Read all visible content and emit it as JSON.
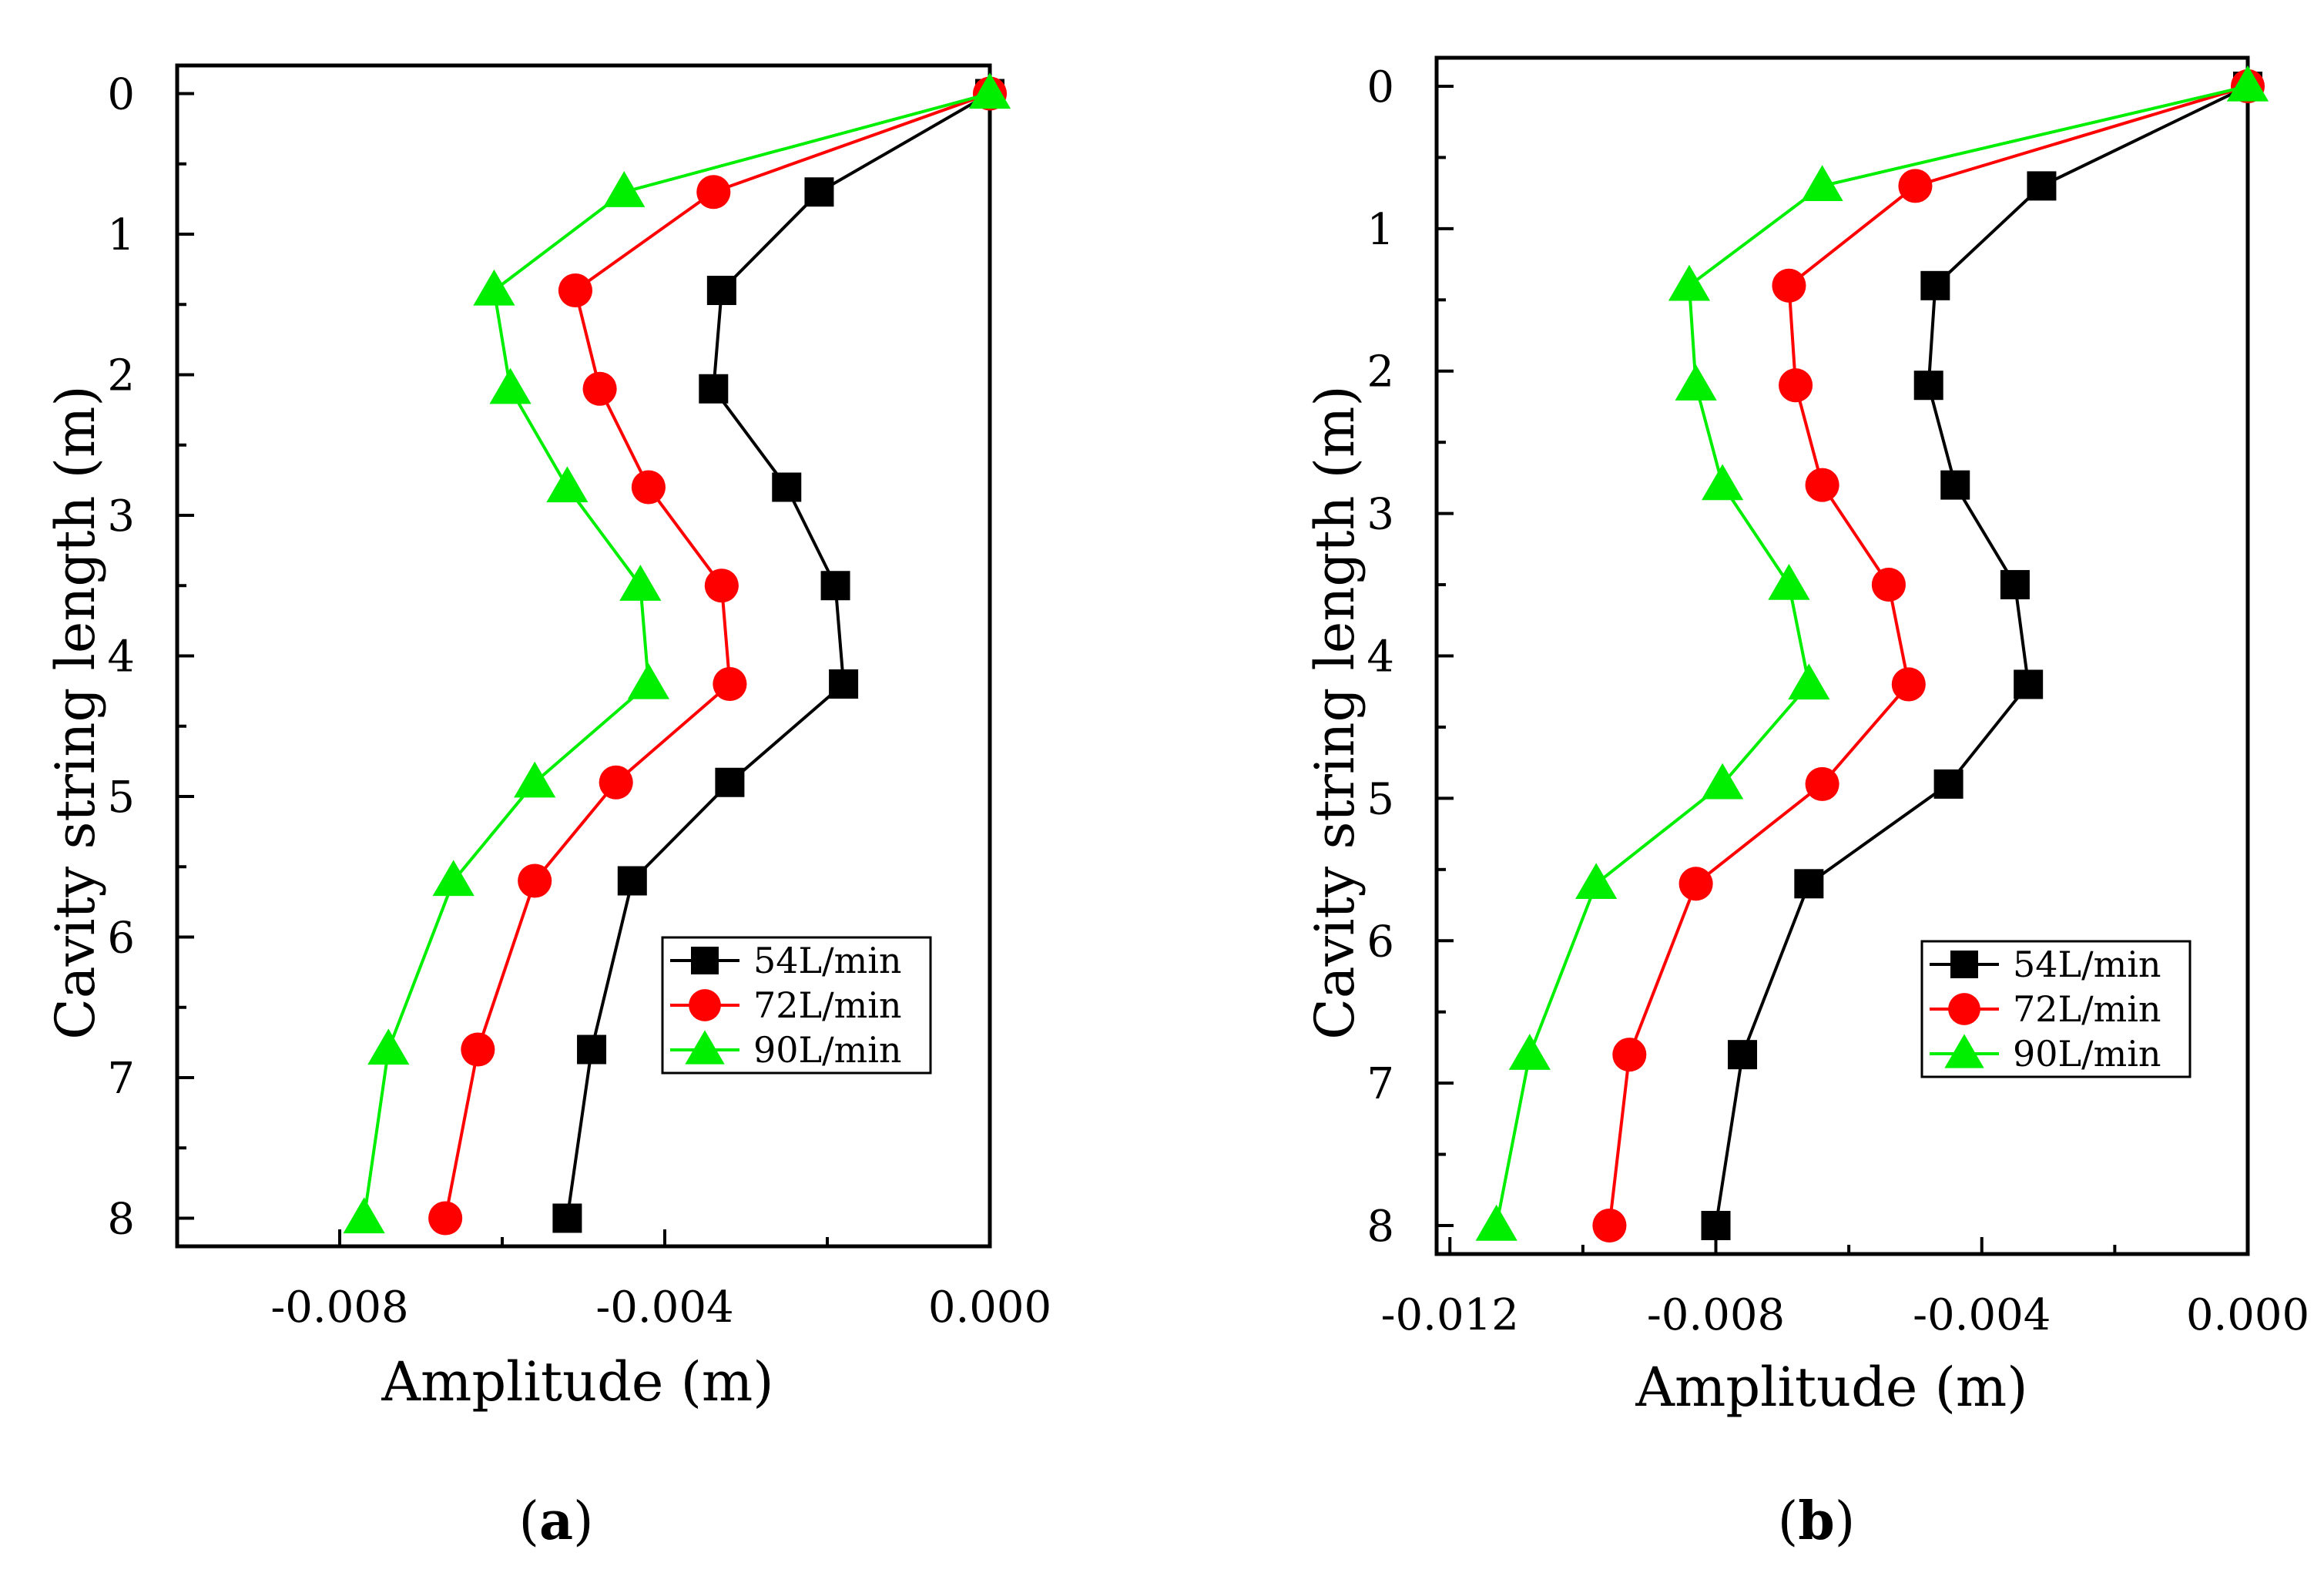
{
  "chart_data": [
    {
      "panel": "a",
      "panel_label": "(a)",
      "type": "line",
      "xlabel": "Amplitude (m)",
      "ylabel": "Cavity string length (m)",
      "xlim": [
        -0.01,
        0.0
      ],
      "ylim": [
        8.2,
        -0.2
      ],
      "x_tick_labels": [
        "-0.008",
        "-0.004",
        "0.000"
      ],
      "x_tick_values": [
        -0.008,
        -0.004,
        0.0
      ],
      "y_tick_labels": [
        "0",
        "1",
        "2",
        "3",
        "4",
        "5",
        "6",
        "7",
        "8"
      ],
      "y_tick_values": [
        0,
        1,
        2,
        3,
        4,
        5,
        6,
        7,
        8
      ],
      "y": [
        0,
        0.7,
        1.4,
        2.1,
        2.8,
        3.5,
        4.2,
        4.9,
        5.6,
        6.8,
        8.0
      ],
      "series": [
        {
          "name": "54L/min",
          "color": "#000000",
          "marker": "square",
          "values": [
            0.0,
            -0.0021,
            -0.0033,
            -0.0034,
            -0.0025,
            -0.0019,
            -0.0018,
            -0.0032,
            -0.0044,
            -0.0049,
            -0.0052
          ]
        },
        {
          "name": "72L/min",
          "color": "#ff0000",
          "marker": "circle",
          "values": [
            0.0,
            -0.0034,
            -0.0051,
            -0.0048,
            -0.0042,
            -0.0033,
            -0.0032,
            -0.0046,
            -0.0056,
            -0.0063,
            -0.0067
          ]
        },
        {
          "name": "90L/min",
          "color": "#00ee00",
          "marker": "triangle",
          "values": [
            0.0,
            -0.0045,
            -0.0061,
            -0.0059,
            -0.0052,
            -0.0043,
            -0.0042,
            -0.0056,
            -0.0066,
            -0.0074,
            -0.0077
          ]
        }
      ],
      "legend": "lower-right"
    },
    {
      "panel": "b",
      "panel_label": "(b)",
      "type": "line",
      "xlabel": "Amplitude (m)",
      "ylabel": "Cavity string length (m)",
      "xlim": [
        -0.0122,
        0.0
      ],
      "ylim": [
        8.2,
        -0.2
      ],
      "x_tick_labels": [
        "-0.012",
        "-0.008",
        "-0.004",
        "0.000"
      ],
      "x_tick_values": [
        -0.012,
        -0.008,
        -0.004,
        0.0
      ],
      "y_tick_labels": [
        "0",
        "1",
        "2",
        "3",
        "4",
        "5",
        "6",
        "7",
        "8"
      ],
      "y_tick_values": [
        0,
        1,
        2,
        3,
        4,
        5,
        6,
        7,
        8
      ],
      "y": [
        0,
        0.7,
        1.4,
        2.1,
        2.8,
        3.5,
        4.2,
        4.9,
        5.6,
        6.8,
        8.0
      ],
      "series": [
        {
          "name": "54L/min",
          "color": "#000000",
          "marker": "square",
          "values": [
            0.0,
            -0.0031,
            -0.0047,
            -0.0048,
            -0.0044,
            -0.0035,
            -0.0033,
            -0.0045,
            -0.0066,
            -0.0076,
            -0.008
          ]
        },
        {
          "name": "72L/min",
          "color": "#ff0000",
          "marker": "circle",
          "values": [
            0.0,
            -0.005,
            -0.0069,
            -0.0068,
            -0.0064,
            -0.0054,
            -0.0051,
            -0.0064,
            -0.0083,
            -0.0093,
            -0.0096
          ]
        },
        {
          "name": "90L/min",
          "color": "#00ee00",
          "marker": "triangle",
          "values": [
            0.0,
            -0.0064,
            -0.0084,
            -0.0083,
            -0.0079,
            -0.0069,
            -0.0066,
            -0.0079,
            -0.0098,
            -0.0108,
            -0.0113
          ]
        }
      ],
      "legend": "lower-right"
    }
  ]
}
